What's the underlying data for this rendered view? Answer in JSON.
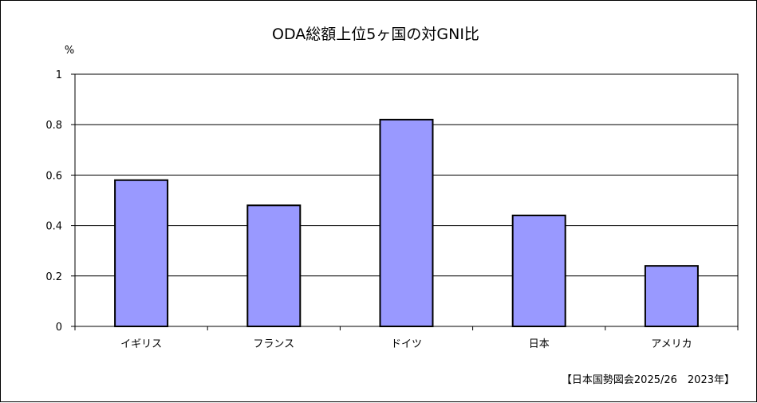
{
  "chart_data": {
    "type": "bar",
    "title": "ODA総額上位5ヶ国の対GNI比",
    "ylabel": "%",
    "xlabel": "",
    "categories": [
      "イギリス",
      "フランス",
      "ドイツ",
      "日本",
      "アメリカ"
    ],
    "values": [
      0.58,
      0.48,
      0.82,
      0.44,
      0.24
    ],
    "ylim": [
      0,
      1
    ],
    "yticks": [
      "0",
      "0.2",
      "0.4",
      "0.6",
      "0.8",
      "1"
    ],
    "grid": true,
    "bar_color": "#9999ff",
    "source": "【日本国勢図会2025/26　2023年】"
  }
}
